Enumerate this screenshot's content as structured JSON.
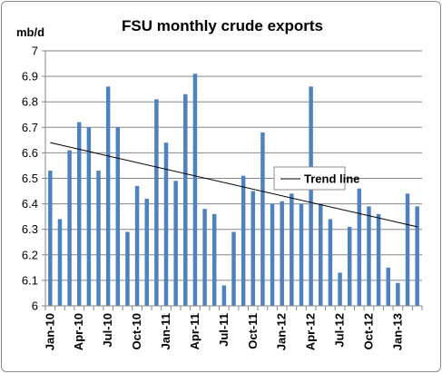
{
  "chart_data": {
    "type": "bar",
    "title": "FSU monthly crude exports",
    "unit_label": "mb/d",
    "ylim": [
      6,
      7
    ],
    "y_ticks": [
      "6",
      "6.1",
      "6.2",
      "6.3",
      "6.4",
      "6.5",
      "6.6",
      "6.7",
      "6.8",
      "6.9",
      "7"
    ],
    "x_tick_labels": [
      "Jan-10",
      "Apr-10",
      "Jul-10",
      "Oct-10",
      "Jan-11",
      "Apr-11",
      "Jul-11",
      "Oct-11",
      "Jan-12",
      "Apr-12",
      "Jul-12",
      "Oct-12",
      "Jan-13"
    ],
    "grid": true,
    "legend_position": "right",
    "series": [
      {
        "type": "bar",
        "color": "#4f81bd",
        "values": [
          6.53,
          6.34,
          6.61,
          6.72,
          6.7,
          6.53,
          6.86,
          6.7,
          6.29,
          6.47,
          6.42,
          6.81,
          6.64,
          6.49,
          6.83,
          6.91,
          6.38,
          6.36,
          6.08,
          6.29,
          6.51,
          6.45,
          6.68,
          6.4,
          6.41,
          6.44,
          6.4,
          6.86,
          6.4,
          6.34,
          6.13,
          6.31,
          6.46,
          6.39,
          6.36,
          6.15,
          6.09,
          6.44,
          6.39
        ]
      },
      {
        "name": "Trend line",
        "type": "line",
        "color": "#000000",
        "start": 6.64,
        "end": 6.31
      }
    ]
  }
}
